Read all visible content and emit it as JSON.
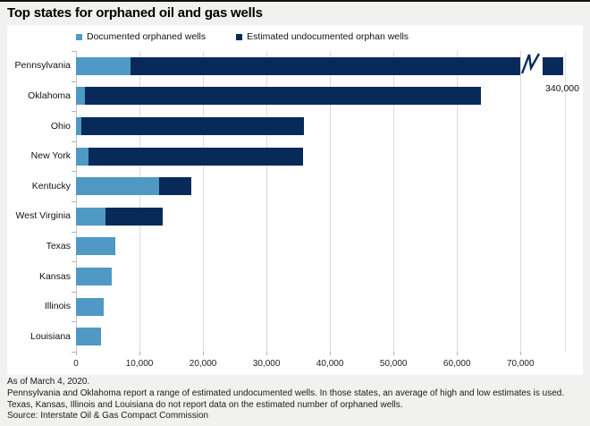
{
  "title": "Top states for orphaned oil and gas wells",
  "chart_data": {
    "type": "bar",
    "orientation": "horizontal-stacked",
    "title": "Top states for orphaned oil and gas wells",
    "xlabel": "",
    "ylabel": "",
    "legend_position": "top",
    "grid": true,
    "categories": [
      "Pennsylvania",
      "Oklahoma",
      "Ohio",
      "New York",
      "Kentucky",
      "West Virginia",
      "Texas",
      "Kansas",
      "Illinois",
      "Louisiana"
    ],
    "series": [
      {
        "name": "Documented orphaned wells",
        "color": "#4f99c4",
        "values": [
          8600,
          1400,
          900,
          2000,
          13100,
          4700,
          6200,
          5700,
          4300,
          4000
        ]
      },
      {
        "name": "Estimated undocumented orphan wells",
        "color": "#072a5a",
        "values": [
          340000,
          62300,
          35000,
          33800,
          5100,
          8900,
          0,
          0,
          0,
          0
        ]
      }
    ],
    "axis": {
      "min": 0,
      "max": 70000,
      "display_max": 77000,
      "tick_step": 10000,
      "tick_labels": [
        "0",
        "10,000",
        "20,000",
        "30,000",
        "40,000",
        "50,000",
        "60,000",
        "70,000"
      ]
    },
    "axis_break": {
      "category": "Pennsylvania",
      "display_cap": 70000,
      "annotation": "340,000"
    }
  },
  "footer": {
    "as_of": "As of March 4, 2020.",
    "note1": "Pennsylvania and Oklahoma report a range of estimated undocumented wells. In those states, an average of high and low estimates is used.",
    "note2": "Texas, Kansas, Illinois and Louisiana do not report data on the estimated number of orphaned wells.",
    "source": "Source: Interstate Oil & Gas Compact Commission"
  }
}
